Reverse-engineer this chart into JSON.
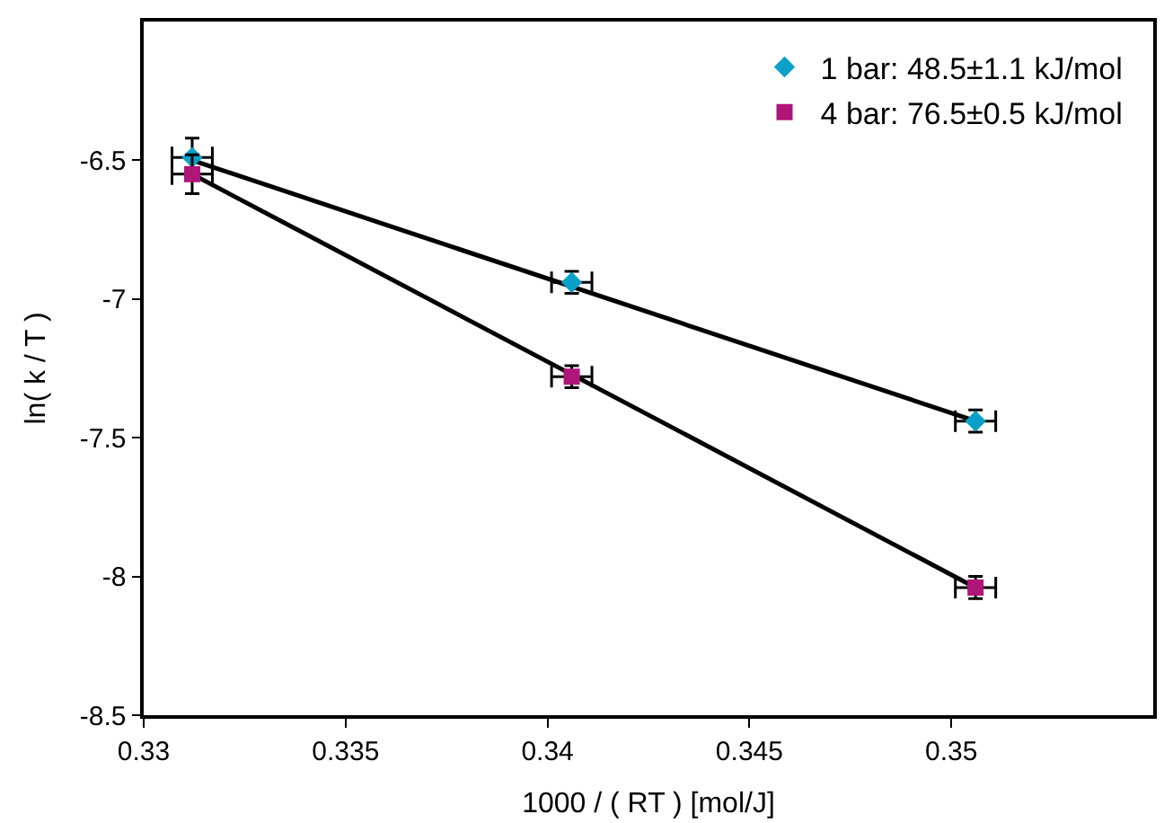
{
  "chart_data": {
    "type": "scatter",
    "xlabel": "1000 / ( RT ) [mol/J]",
    "ylabel": "ln( k / T )",
    "xlim": [
      0.33,
      0.355
    ],
    "xticks": [
      0.33,
      0.335,
      0.34,
      0.345,
      0.35
    ],
    "ylim": [
      -8.5,
      -6
    ],
    "yticks": [
      -8.5,
      -8,
      -7.5,
      -7,
      -6.5
    ],
    "legend": "top right",
    "series": [
      {
        "type": "line",
        "color": "#000000",
        "x": [
          0.3312,
          0.3506
        ],
        "values": [
          -6.5,
          -7.44
        ]
      },
      {
        "type": "line",
        "color": "#000000",
        "x": [
          0.3312,
          0.3506
        ],
        "values": [
          -6.55,
          -8.04
        ]
      },
      {
        "name": "1 bar: 48.5±1.1 kJ/mol",
        "color": "#0aa0c8",
        "marker": "diamond",
        "x": [
          0.3312,
          0.3406,
          0.3506
        ],
        "values": [
          -6.49,
          -6.94,
          -7.44
        ],
        "errors": [
          0.07,
          0.04,
          0.04
        ],
        "xerrors": [
          0.0005,
          0.0005,
          0.0005
        ]
      },
      {
        "name": "4 bar: 76.5±0.5 kJ/mol",
        "color": "#b0157a",
        "marker": "square",
        "x": [
          0.3312,
          0.3406,
          0.3506
        ],
        "values": [
          -6.55,
          -7.28,
          -8.04
        ],
        "errors": [
          0.07,
          0.04,
          0.04
        ],
        "xerrors": [
          0.0005,
          0.0005,
          0.0005
        ]
      }
    ]
  }
}
